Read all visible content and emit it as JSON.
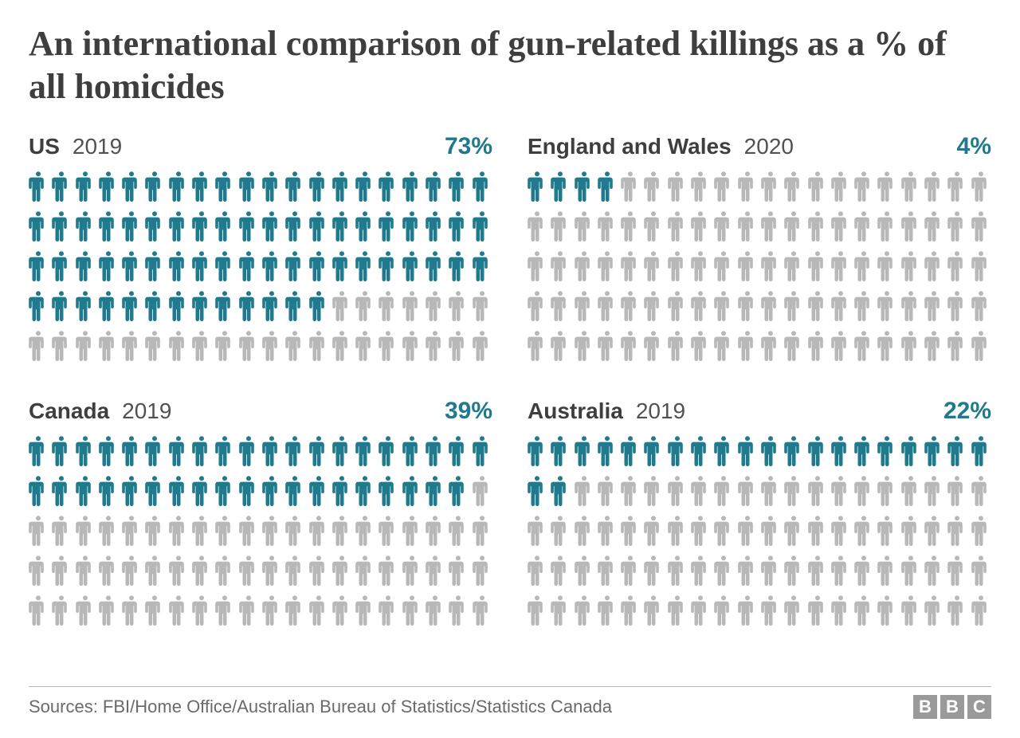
{
  "title": "An international comparison of gun-related killings as a % of all homicides",
  "type": "pictogram",
  "grid": {
    "rows": 5,
    "cols": 20,
    "total": 100
  },
  "colors": {
    "filled": "#1e7a8c",
    "empty": "#b8b8b8",
    "title_text": "#3e3e3e",
    "year_text": "#515151",
    "background": "#ffffff",
    "footer_text": "#6a6a6a",
    "footer_rule": "#b8b8b8",
    "bbc_box": "#9a9a9a",
    "bbc_text": "#ffffff"
  },
  "typography": {
    "title_fontsize": 44,
    "header_fontsize": 28,
    "pct_fontsize": 30,
    "footer_fontsize": 22
  },
  "panels": [
    {
      "country": "US",
      "year": "2019",
      "pct_label": "73%",
      "filled": 73
    },
    {
      "country": "England and Wales",
      "year": "2020",
      "pct_label": "4%",
      "filled": 4
    },
    {
      "country": "Canada",
      "year": "2019",
      "pct_label": "39%",
      "filled": 39
    },
    {
      "country": "Australia",
      "year": "2019",
      "pct_label": "22%",
      "filled": 22
    }
  ],
  "footer": {
    "sources": "Sources: FBI/Home Office/Australian Bureau of Statistics/Statistics Canada",
    "logo_letters": [
      "B",
      "B",
      "C"
    ]
  }
}
